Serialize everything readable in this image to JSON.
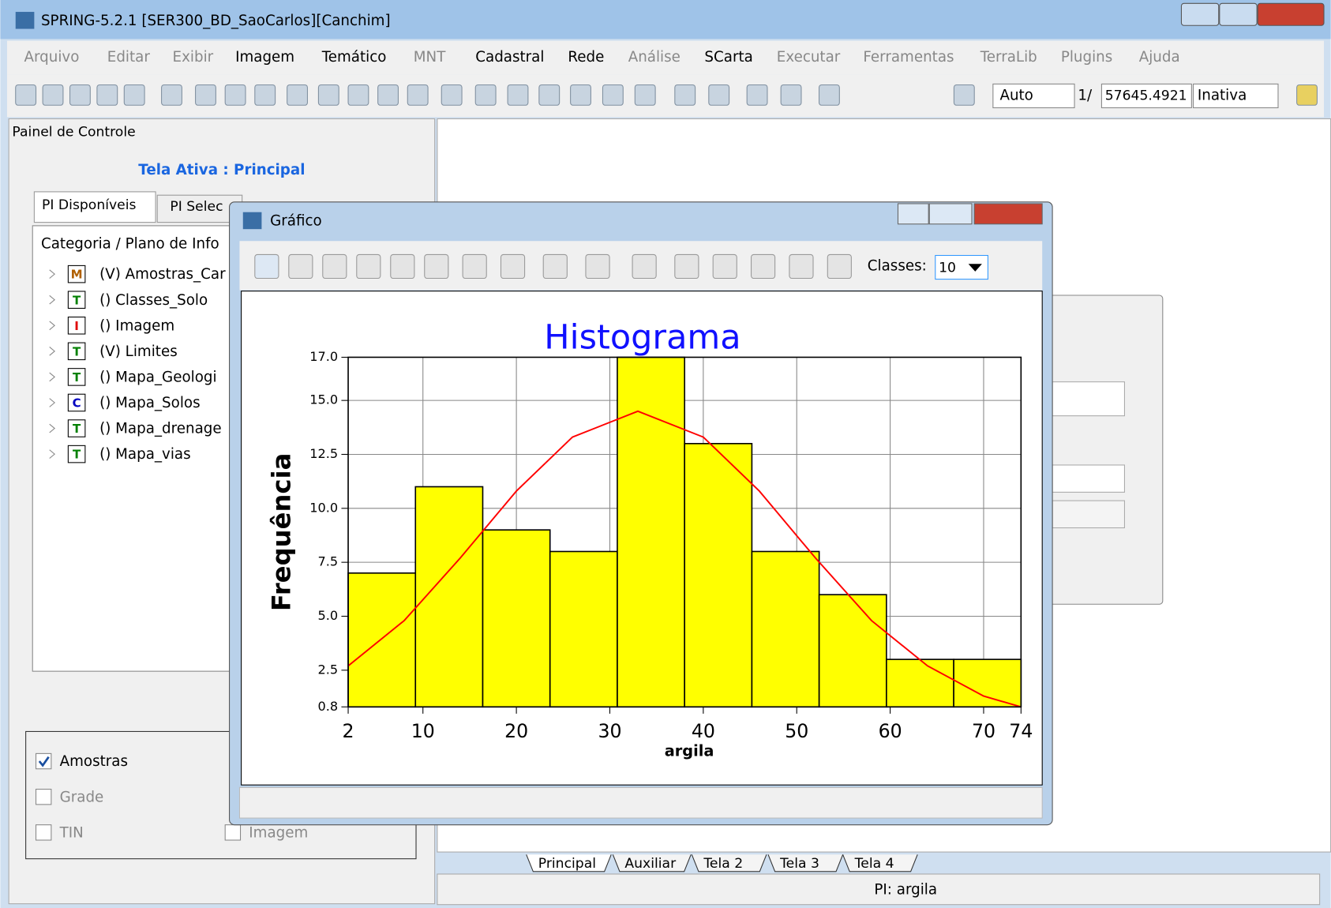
{
  "window": {
    "title": "SPRING-5.2.1 [SER300_BD_SaoCarlos][Canchim]"
  },
  "menu": [
    {
      "label": "Arquivo",
      "enabled": false
    },
    {
      "label": "Editar",
      "enabled": false
    },
    {
      "label": "Exibir",
      "enabled": false
    },
    {
      "label": "Imagem",
      "enabled": true
    },
    {
      "label": "Temático",
      "enabled": true
    },
    {
      "label": "MNT",
      "enabled": false
    },
    {
      "label": "Cadastral",
      "enabled": true
    },
    {
      "label": "Rede",
      "enabled": true
    },
    {
      "label": "Análise",
      "enabled": false
    },
    {
      "label": "SCarta",
      "enabled": true
    },
    {
      "label": "Executar",
      "enabled": false
    },
    {
      "label": "Ferramentas",
      "enabled": false
    },
    {
      "label": "TerraLib",
      "enabled": false
    },
    {
      "label": "Plugins",
      "enabled": false
    },
    {
      "label": "Ajuda",
      "enabled": false
    }
  ],
  "toolbar": {
    "scale_mode": "Auto",
    "scale_prefix": "1/",
    "scale_value": "57645.4921",
    "state": "Inativa"
  },
  "panel": {
    "title": "Painel de Controle",
    "active_screen": "Tela Ativa : Principal",
    "tabs": [
      "PI Disponíveis",
      "PI Selec"
    ],
    "tree_header": "Categoria / Plano de Info",
    "items": [
      {
        "icon": "M",
        "icon_color": "#b06000",
        "label": "(V) Amostras_Car"
      },
      {
        "icon": "T",
        "icon_color": "#008000",
        "label": "() Classes_Solo"
      },
      {
        "icon": "I",
        "icon_color": "#e00000",
        "label": "() Imagem"
      },
      {
        "icon": "T",
        "icon_color": "#008000",
        "label": "(V) Limites"
      },
      {
        "icon": "T",
        "icon_color": "#008000",
        "label": "() Mapa_Geologi"
      },
      {
        "icon": "C",
        "icon_color": "#0000c0",
        "label": "() Mapa_Solos"
      },
      {
        "icon": "T",
        "icon_color": "#008000",
        "label": "() Mapa_drenage"
      },
      {
        "icon": "T",
        "icon_color": "#008000",
        "label": "() Mapa_vias"
      }
    ],
    "checkboxes": [
      {
        "label": "Amostras",
        "checked": true
      },
      {
        "label": "Grade",
        "checked": false
      },
      {
        "label": "TIN",
        "checked": false
      },
      {
        "label": "Imagem",
        "checked": false
      }
    ]
  },
  "screen_tabs": [
    "Principal",
    "Auxiliar",
    "Tela 2",
    "Tela 3",
    "Tela 4"
  ],
  "status": "PI: argila",
  "dialog": {
    "title": "Gráfico",
    "classes_label": "Classes:",
    "classes_value": "10"
  },
  "chart_data": {
    "type": "histogram",
    "title": "Histograma",
    "xlabel": "argila",
    "ylabel": "Frequência",
    "bins": [
      2,
      9.2,
      16.4,
      23.6,
      30.8,
      38,
      45.2,
      52.4,
      59.6,
      66.8,
      74
    ],
    "values": [
      7,
      11,
      9,
      8,
      17,
      13,
      8,
      6,
      3,
      3
    ],
    "color": "#ffff00",
    "xlim": [
      2,
      74
    ],
    "ylim": [
      0.8,
      17
    ],
    "xticks": [
      2,
      10,
      20,
      30,
      40,
      50,
      60,
      70,
      74
    ],
    "yticks": [
      0.8,
      2.5,
      {
        "value": 5,
        "label": "5.0"
      },
      7.5,
      {
        "value": 10,
        "label": "10.0"
      },
      12.5,
      {
        "value": 15,
        "label": "15.0"
      },
      {
        "value": 17,
        "label": "17.0"
      }
    ],
    "grid": true,
    "curve": {
      "color": "#ff0000",
      "x": [
        2,
        8,
        14,
        20,
        26,
        33,
        40,
        46,
        52,
        58,
        64,
        70,
        74
      ],
      "values": [
        2.7,
        4.8,
        7.7,
        10.8,
        13.3,
        14.5,
        13.3,
        10.8,
        7.7,
        4.8,
        2.7,
        1.3,
        0.8
      ]
    }
  }
}
